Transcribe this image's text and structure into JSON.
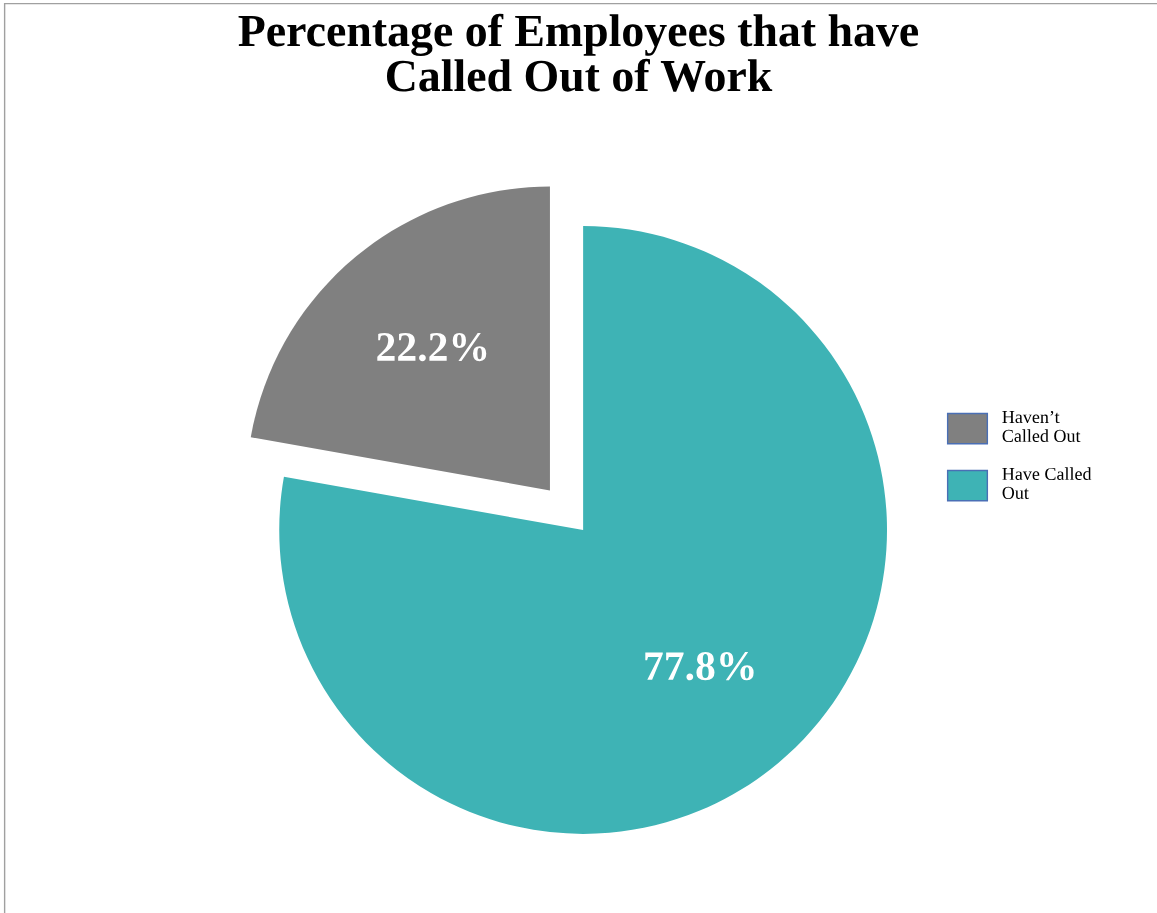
{
  "chart_data": {
    "type": "pie",
    "title": "Percentage of Employees that have\nCalled Out of Work",
    "categories": [
      "Haven’t\nCalled Out",
      "Have Called\nOut"
    ],
    "values": [
      22.2,
      77.8
    ],
    "colors": [
      "#808080",
      "#3eb3b5"
    ],
    "value_labels": [
      "22.2%",
      "77.8%"
    ],
    "legend": "right"
  }
}
